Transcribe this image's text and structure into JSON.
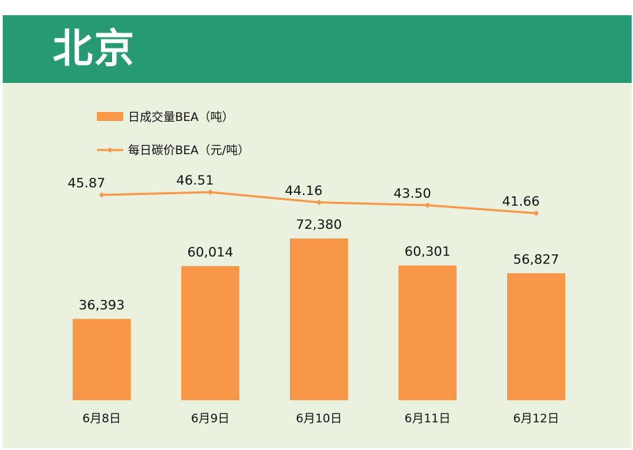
{
  "header": {
    "title": "北京"
  },
  "colors": {
    "header_bg": "#279a73",
    "panel_bg": "#ebf1df",
    "bar": "#f79747",
    "line": "#f79747"
  },
  "chart_data": {
    "type": "bar",
    "categories": [
      "6月8日",
      "6月9日",
      "6月10日",
      "6月11日",
      "6月12日"
    ],
    "series": [
      {
        "name": "日成交量BEA（吨）",
        "type": "bar",
        "values": [
          36393,
          60014,
          72380,
          60301,
          56827
        ],
        "labels": [
          "36,393",
          "60,014",
          "72,380",
          "60,301",
          "56,827"
        ]
      },
      {
        "name": "每日碳价BEA（元/吨）",
        "type": "line",
        "values": [
          45.87,
          46.51,
          44.16,
          43.5,
          41.66
        ],
        "labels": [
          "45.87",
          "46.51",
          "44.16",
          "43.50",
          "41.66"
        ]
      }
    ],
    "legend_position": "top-left",
    "grid": false
  }
}
